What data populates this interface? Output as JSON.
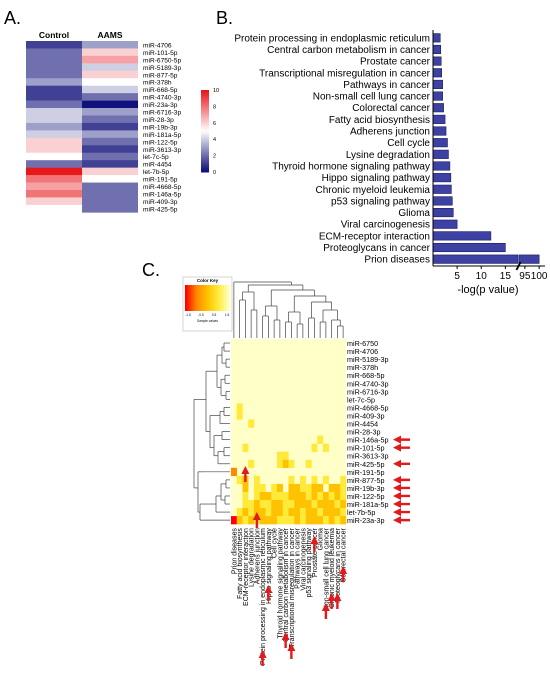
{
  "panel_labels": {
    "a": "A.",
    "b": "B.",
    "c": "C."
  },
  "colors": {
    "heat_low": "#10117a",
    "heat_mid": "#ffffff",
    "heat_high": "#e8171c",
    "bar": "#3d41a4",
    "arrow": "#e31a1c"
  },
  "chart_data": [
    {
      "id": "A",
      "type": "heatmap",
      "columns": [
        "Control",
        "AAMS"
      ],
      "rows": [
        "miR-4706",
        "miR-101-5p",
        "miR-6750-5p",
        "miR-5189-3p",
        "miR-877-5p",
        "miR-378h",
        "miR-668-5p",
        "miR-4740-3p",
        "miR-23a-3p",
        "miR-6716-3p",
        "miR-28-3p",
        "miR-19b-3p",
        "miR-181a-5p",
        "miR-122-5p",
        "miR-3613-3p",
        "let-7c-5p",
        "miR-4454",
        "let-7b-5p",
        "miR-191-5p",
        "miR-4668-5p",
        "miR-146a-5p",
        "miR-409-3p",
        "miR-425-5p"
      ],
      "values": [
        [
          1,
          3
        ],
        [
          2,
          6
        ],
        [
          2,
          7
        ],
        [
          2,
          4
        ],
        [
          2,
          6
        ],
        [
          3,
          5
        ],
        [
          1,
          4
        ],
        [
          1,
          2
        ],
        [
          2,
          0
        ],
        [
          4,
          3
        ],
        [
          4,
          2
        ],
        [
          3,
          1
        ],
        [
          4,
          3
        ],
        [
          6,
          2
        ],
        [
          6,
          1
        ],
        [
          5,
          2
        ],
        [
          2,
          1
        ],
        [
          10,
          6
        ],
        [
          8,
          5
        ],
        [
          7,
          2
        ],
        [
          8,
          2
        ],
        [
          6,
          2
        ],
        [
          5,
          2
        ]
      ],
      "legend": {
        "min": 0,
        "max": 10,
        "ticks": [
          "10",
          "8",
          "6",
          "4",
          "2",
          "0"
        ]
      }
    },
    {
      "id": "B",
      "type": "bar",
      "orientation": "horizontal",
      "categories": [
        "Protein processing in endoplasmic reticulum",
        "Central carbon metabolism in cancer",
        "Prostate cancer",
        "Transcriptional misregulation in cancer",
        "Pathways in cancer",
        "Non-small cell lung cancer",
        "Colorectal cancer",
        "Fatty acid biosynthesis",
        "Adherens junction",
        "Cell cycle",
        "Lysine degradation",
        "Thyroid hormone signaling pathway",
        "Hippo signaling pathway",
        "Chronic myeloid leukemia",
        "p53 signaling pathway",
        "Glioma",
        "Viral carcinogenesis",
        "ECM-receptor interaction",
        "Proteoglycans in cancer",
        "Prion diseases"
      ],
      "values": [
        1.5,
        1.6,
        1.7,
        1.8,
        2,
        2,
        2.2,
        2.5,
        2.7,
        3,
        3.2,
        3.5,
        3.7,
        3.8,
        4,
        4.2,
        5,
        12,
        15,
        100
      ],
      "xlabel": "-log(p value)",
      "xticks": [
        "5",
        "10",
        "15",
        "95",
        "100"
      ],
      "axis_break": [
        17,
        94
      ]
    },
    {
      "id": "C",
      "type": "heatmap",
      "legend_title": "Color Key",
      "legend_ticks": [
        "-1.5",
        "-0.5",
        "0.5",
        "1.5"
      ],
      "legend_caption": "Sample values",
      "rows": [
        "miR-6750",
        "miR-4706",
        "miR-5189-3p",
        "miR-378h",
        "miR-668-5p",
        "miR-4740-3p",
        "miR-6716-3p",
        "let-7c-5p",
        "miR-4668-5p",
        "miR-409-3p",
        "miR-4454",
        "miR-28-3p",
        "miR-146a-5p",
        "miR-101-5p",
        "miR-3613-3p",
        "miR-425-5p",
        "miR-191-5p",
        "miR-877-5p",
        "miR-19b-3p",
        "miR-122-5p",
        "miR-181a-5p",
        "let-7b-5p",
        "miR-23a-3p"
      ],
      "highlighted_rows": [
        "miR-146a-5p",
        "miR-101-5p",
        "miR-425-5p",
        "miR-877-5p",
        "miR-19b-3p",
        "miR-122-5p",
        "miR-181a-5p",
        "let-7b-5p",
        "miR-23a-3p"
      ],
      "columns": [
        "Prion diseases",
        "Fatty acid biosynthesis",
        "ECM-receptor interaction",
        "Lysine degradation",
        "Adherens junction",
        "Protein processing in endoplasmic reticulum",
        "Hippo signaling pathway",
        "Cell cycle",
        "Thyroid hormone signaling pathway",
        "Central carbon metabolism in cancer",
        "Transcriptional misregulation in cancer",
        "Pathways in cancer",
        "Viral carcinogenesis",
        "p53 signaling pathway",
        "Prostate cancer",
        "Glioma",
        "Non-small cell lung cancer",
        "Chronic myeloid leukemia",
        "Proteoglycans in cancer",
        "Colorectal cancer"
      ],
      "highlighted_columns": [
        "ECM-receptor interaction",
        "Adherens junction",
        "Protein processing in endoplasmic reticulum",
        "Hippo signaling pathway",
        "Central carbon metabolism in cancer",
        "Transcriptional misregulation in cancer",
        "Prostate cancer",
        "Non-small cell lung cancer",
        "Chronic myeloid leukemia",
        "Proteoglycans in cancer",
        "Colorectal cancer"
      ],
      "cells": [
        [
          0,
          0,
          0,
          0,
          0,
          0,
          0,
          0,
          0,
          0,
          0,
          0,
          0,
          0,
          0,
          0,
          0,
          0,
          0,
          0
        ],
        [
          0,
          0,
          0,
          0,
          0,
          0,
          0,
          0,
          0,
          0,
          0,
          0,
          0,
          0,
          0,
          0,
          0,
          0,
          0,
          0
        ],
        [
          0,
          0,
          0,
          0,
          0,
          0,
          0,
          0,
          0,
          0,
          0,
          0,
          0,
          0,
          0,
          0,
          0,
          0,
          0,
          0
        ],
        [
          0,
          0,
          0,
          0,
          0,
          0,
          0,
          0,
          0,
          0,
          0,
          0,
          0,
          0,
          0,
          0,
          0,
          0,
          0,
          0
        ],
        [
          0,
          0,
          0,
          0,
          0,
          0,
          0,
          0,
          0,
          0,
          0,
          0,
          0,
          0,
          0,
          0,
          0,
          0,
          0,
          0
        ],
        [
          0,
          0,
          0,
          0,
          0,
          0,
          0,
          0,
          0,
          0,
          0,
          0,
          0,
          0,
          0,
          0,
          0,
          0,
          0,
          0
        ],
        [
          0,
          0,
          0,
          0,
          0,
          0,
          0,
          0,
          0,
          0,
          0,
          0,
          0,
          0,
          0,
          0,
          0,
          0,
          0,
          0
        ],
        [
          0,
          0,
          0,
          0,
          0,
          0,
          0,
          0,
          0,
          0,
          0,
          0,
          0,
          0,
          0,
          0,
          0,
          0,
          0,
          0
        ],
        [
          0,
          1,
          0,
          0,
          0,
          0,
          0,
          0,
          0,
          0,
          0,
          0,
          0,
          0,
          0,
          0,
          0,
          0,
          0,
          0
        ],
        [
          0,
          1,
          0,
          0,
          0,
          0,
          0,
          0,
          0,
          0,
          0,
          0,
          0,
          0,
          0,
          0,
          0,
          0,
          0,
          0
        ],
        [
          0,
          0,
          0,
          1,
          0,
          0,
          0,
          0,
          0,
          0,
          0,
          0,
          0,
          0,
          0,
          0,
          0,
          0,
          0,
          0
        ],
        [
          0,
          0,
          0,
          0,
          0,
          0,
          0,
          0,
          0,
          0,
          0,
          0,
          0,
          0,
          0,
          0,
          0,
          0,
          0,
          0
        ],
        [
          0,
          0,
          0,
          0,
          0,
          0,
          0,
          0,
          0,
          0,
          0,
          0,
          0,
          0,
          0,
          1,
          0,
          0,
          0,
          0
        ],
        [
          0,
          0,
          1,
          0,
          0,
          0,
          0,
          0,
          0,
          0,
          0,
          0,
          0,
          0,
          1,
          0,
          1,
          0,
          0,
          0
        ],
        [
          0,
          0,
          0,
          0,
          0,
          0,
          0,
          0,
          1,
          1,
          0,
          0,
          0,
          0,
          0,
          0,
          0,
          0,
          0,
          0
        ],
        [
          0,
          0,
          0,
          1,
          0,
          0,
          0,
          0,
          1,
          2,
          1,
          0,
          0,
          1,
          0,
          0,
          0,
          0,
          0,
          0
        ],
        [
          3,
          0,
          0,
          0,
          0,
          0,
          0,
          0,
          0,
          0,
          0,
          0,
          0,
          0,
          0,
          0,
          0,
          0,
          0,
          0
        ],
        [
          0,
          1,
          2,
          0,
          1,
          0,
          0,
          0,
          0,
          0,
          1,
          0,
          1,
          0,
          1,
          0,
          1,
          0,
          0,
          1
        ],
        [
          0,
          0,
          2,
          0,
          1,
          1,
          0,
          1,
          2,
          0,
          2,
          2,
          1,
          1,
          2,
          2,
          0,
          2,
          2,
          1
        ],
        [
          0,
          0,
          1,
          0,
          1,
          2,
          2,
          1,
          1,
          1,
          2,
          2,
          2,
          1,
          2,
          1,
          2,
          1,
          2,
          1
        ],
        [
          0,
          0,
          1,
          1,
          2,
          1,
          1,
          2,
          2,
          1,
          1,
          2,
          2,
          2,
          1,
          2,
          2,
          2,
          1,
          2
        ],
        [
          0,
          1,
          2,
          1,
          2,
          2,
          1,
          2,
          2,
          1,
          2,
          2,
          1,
          2,
          2,
          1,
          2,
          2,
          2,
          1
        ],
        [
          4,
          2,
          1,
          2,
          1,
          2,
          2,
          2,
          1,
          1,
          1,
          2,
          1,
          2,
          2,
          2,
          1,
          2,
          1,
          2
        ]
      ]
    }
  ]
}
